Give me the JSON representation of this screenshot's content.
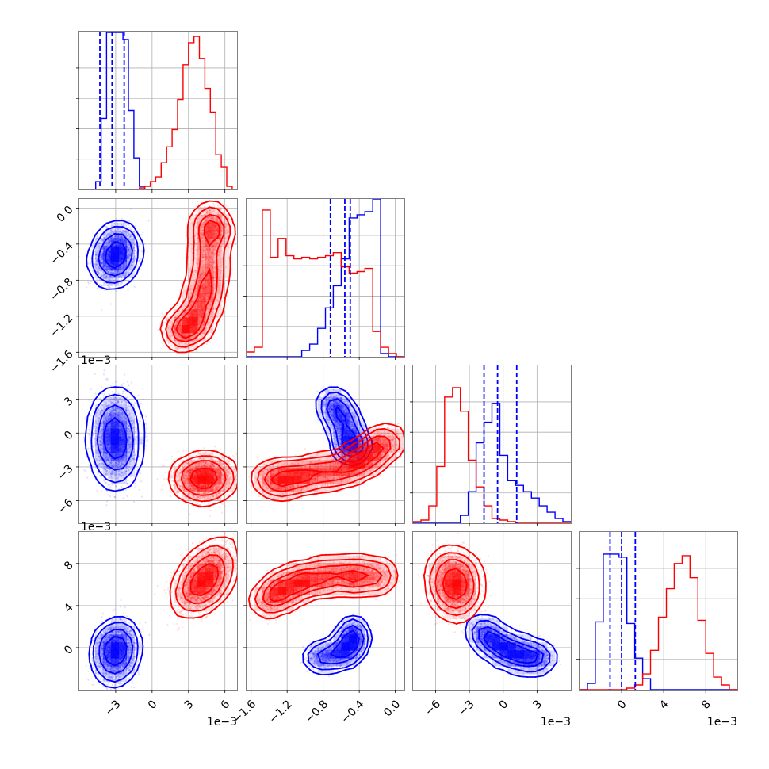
{
  "chart_data": {
    "type": "corner",
    "colors": {
      "series_a": "#0000ff",
      "series_b": "#ff0000",
      "grid": "#b0b0b0",
      "frame": "#808080"
    },
    "grid": true,
    "parameters": [
      {
        "range": [
          -6.0,
          7.0
        ],
        "ticks": [
          -3,
          0,
          3,
          6
        ],
        "tick_labels": [
          "−3",
          "0",
          "3",
          "6"
        ],
        "offset_text": "1e−3",
        "quantile_lines": [
          -4.3,
          -3.3,
          -2.3
        ]
      },
      {
        "range": [
          -1.65,
          0.1
        ],
        "ticks": [
          -1.6,
          -1.2,
          -0.8,
          -0.4,
          0.0
        ],
        "tick_labels": [
          "−1.6",
          "−1.2",
          "−0.8",
          "−0.4",
          "0.0"
        ],
        "offset_text": "",
        "quantile_lines": [
          -0.72,
          -0.56,
          -0.5
        ]
      },
      {
        "range": [
          -8.0,
          6.0
        ],
        "ticks": [
          -6,
          -3,
          0,
          3
        ],
        "tick_labels": [
          "−6",
          "−3",
          "0",
          "3"
        ],
        "offset_text": "1e−3",
        "quantile_lines": [
          -1.7,
          -0.5,
          1.2
        ]
      },
      {
        "range": [
          -4.0,
          11.0
        ],
        "ticks": [
          0,
          4,
          8
        ],
        "tick_labels": [
          "0",
          "4",
          "8"
        ],
        "offset_text": "1e−3",
        "quantile_lines": [
          -1.1,
          0.0,
          1.3
        ]
      }
    ],
    "hist_1d": [
      {
        "bins_start": -6.0,
        "bin_width": 0.45,
        "blue": [
          0,
          0,
          0,
          0.05,
          0.45,
          1.0,
          1.0,
          1.0,
          0.95,
          0.5,
          0.2,
          0.02,
          0,
          0,
          0,
          0,
          0,
          0,
          0,
          0,
          0,
          0,
          0,
          0,
          0,
          0,
          0,
          0,
          0
        ],
        "red": [
          0,
          0,
          0,
          0,
          0,
          0,
          0,
          0,
          0,
          0,
          0,
          0.01,
          0.02,
          0.05,
          0.08,
          0.17,
          0.27,
          0.38,
          0.57,
          0.79,
          0.93,
          0.97,
          0.83,
          0.64,
          0.49,
          0.22,
          0.14,
          0.02,
          0
        ]
      },
      {
        "bins_start": -1.65,
        "bin_width": 0.0875,
        "blue": [
          0,
          0,
          0,
          0,
          0,
          0,
          0,
          0.04,
          0.08,
          0.18,
          0.31,
          0.45,
          0.62,
          0.88,
          0.9,
          0.92,
          1.0,
          0.02,
          0,
          0
        ],
        "red": [
          0.03,
          0.06,
          0.93,
          0.63,
          0.75,
          0.64,
          0.62,
          0.63,
          0.62,
          0.63,
          0.64,
          0.66,
          0.57,
          0.53,
          0.54,
          0.56,
          0.16,
          0.06,
          0.02,
          0
        ]
      },
      {
        "bins_start": -8.0,
        "bin_width": 0.7,
        "blue": [
          0,
          0,
          0,
          0,
          0,
          0,
          0.05,
          0.2,
          0.51,
          0.64,
          0.76,
          0.43,
          0.27,
          0.24,
          0.2,
          0.16,
          0.11,
          0.07,
          0.03,
          0.01
        ],
        "red": [
          0.01,
          0.02,
          0.11,
          0.36,
          0.8,
          0.86,
          0.71,
          0.4,
          0.23,
          0.11,
          0.03,
          0.02,
          0.01,
          0,
          0,
          0,
          0,
          0,
          0,
          0
        ]
      },
      {
        "bins_start": -4.0,
        "bin_width": 0.75,
        "blue": [
          0,
          0.04,
          0.43,
          0.86,
          0.86,
          0.84,
          0.42,
          0.2,
          0.07,
          0,
          0,
          0,
          0,
          0,
          0,
          0,
          0,
          0,
          0,
          0
        ],
        "red": [
          0,
          0,
          0,
          0,
          0,
          0,
          0.01,
          0.03,
          0.1,
          0.25,
          0.46,
          0.64,
          0.8,
          0.85,
          0.71,
          0.44,
          0.23,
          0.08,
          0.03,
          0
        ]
      }
    ],
    "hist_2d": [
      {
        "params": [
          0,
          1
        ],
        "blue": {
          "center": [
            -3.0,
            -0.52
          ],
          "sigma": [
            0.75,
            0.14
          ],
          "rho": 0.15
        },
        "red": {
          "path": [
            [
              2.0,
              -1.38
            ],
            [
              3.5,
              -1.3
            ],
            [
              4.3,
              -1.0
            ],
            [
              4.6,
              -0.7
            ],
            [
              4.8,
              -0.3
            ],
            [
              4.9,
              -0.1
            ]
          ],
          "width": 1.1
        }
      },
      {
        "params": [
          0,
          2
        ],
        "blue": {
          "center": [
            -3.0,
            -0.5
          ],
          "sigma": [
            0.8,
            1.8
          ],
          "rho": 0.0
        },
        "red": {
          "center": [
            4.3,
            -4.0
          ],
          "sigma": [
            1.1,
            0.85
          ],
          "rho": 0.05
        }
      },
      {
        "params": [
          1,
          2
        ],
        "blue": {
          "path": [
            [
              -0.72,
              3.0
            ],
            [
              -0.6,
              1.5
            ],
            [
              -0.5,
              -0.7
            ],
            [
              -0.48,
              -1.5
            ]
          ],
          "width": 0.9
        },
        "red": {
          "path": [
            [
              -1.45,
              -4.0
            ],
            [
              -1.2,
              -4.1
            ],
            [
              -0.9,
              -3.6
            ],
            [
              -0.55,
              -3.2
            ],
            [
              -0.3,
              -2.0
            ],
            [
              -0.05,
              -0.3
            ]
          ],
          "width": 1.0
        }
      },
      {
        "params": [
          0,
          3
        ],
        "blue": {
          "center": [
            -3.0,
            -0.4
          ],
          "sigma": [
            0.75,
            1.3
          ],
          "rho": 0.1
        },
        "red": {
          "center": [
            4.3,
            6.5
          ],
          "sigma": [
            1.05,
            1.45
          ],
          "rho": 0.5
        }
      },
      {
        "params": [
          1,
          3
        ],
        "blue": {
          "path": [
            [
              -0.9,
              -1.0
            ],
            [
              -0.6,
              -0.6
            ],
            [
              -0.48,
              0.4
            ],
            [
              -0.46,
              1.8
            ]
          ],
          "width": 0.8
        },
        "red": {
          "path": [
            [
              -1.45,
              4.2
            ],
            [
              -1.2,
              5.8
            ],
            [
              -0.9,
              6.6
            ],
            [
              -0.5,
              6.9
            ],
            [
              -0.1,
              6.8
            ]
          ],
          "width": 1.1
        }
      },
      {
        "params": [
          2,
          3
        ],
        "blue": {
          "path": [
            [
              -2.0,
              1.8
            ],
            [
              -1.0,
              0.6
            ],
            [
              0.5,
              -0.4
            ],
            [
              2.0,
              -0.8
            ],
            [
              3.5,
              -1.0
            ]
          ],
          "width": 0.95
        },
        "red": {
          "center": [
            -4.3,
            6.0
          ],
          "sigma": [
            0.95,
            1.35
          ],
          "rho": -0.05
        }
      }
    ]
  }
}
